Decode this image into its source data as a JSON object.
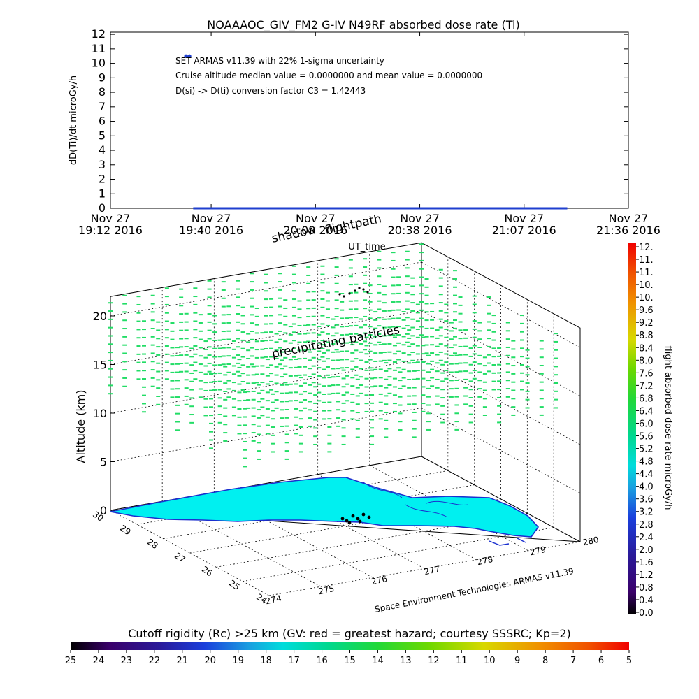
{
  "chart_data": [
    {
      "type": "scatter",
      "title": "NOAAAOC_GIV_FM2 G-IV    N49RF  absorbed dose rate (Ti)",
      "ylabel": "dD(Ti)/dt microGy/h",
      "xlabel": "UT_time",
      "ylim": [
        0,
        12
      ],
      "y_ticks": [
        "0",
        "1",
        "2",
        "3",
        "4",
        "5",
        "6",
        "7",
        "8",
        "9",
        "10",
        "11",
        "12"
      ],
      "x_ticks": [
        {
          "day": "Nov 27",
          "time": "19:12 2016"
        },
        {
          "day": "Nov 27",
          "time": "19:40 2016"
        },
        {
          "day": "Nov 27",
          "time": "20:09 2016"
        },
        {
          "day": "Nov 27",
          "time": "20:38 2016"
        },
        {
          "day": "Nov 27",
          "time": "21:07 2016"
        },
        {
          "day": "Nov 27",
          "time": "21:36 2016"
        }
      ],
      "series": [
        {
          "start": "19:35",
          "end": "21:19",
          "dose_rate": 0,
          "color": "#1f3fcf"
        }
      ],
      "legend_marker": {
        "time": "19:33",
        "value": 10.5
      },
      "annotations": [
        "SET ARMAS v11.39 with 22% 1-sigma uncertainty",
        "Cruise altitude median value = 0.0000000 and mean value = 0.0000000",
        "D(si) -> D(ti) conversion factor C3 = 1.42443"
      ]
    },
    {
      "type": "3d-scatter",
      "zlabel": "Altitude (km)",
      "z_ticks": [
        "0",
        "5",
        "10",
        "15",
        "20"
      ],
      "zlim": [
        0,
        22
      ],
      "lat_ticks": [
        "30",
        "29",
        "28",
        "27",
        "26",
        "25",
        "24"
      ],
      "lon_ticks": [
        "274",
        "275",
        "276",
        "277",
        "278",
        "279",
        "280"
      ],
      "labels": {
        "flightpath": "flightpath",
        "shadow": "shadow",
        "particles": "precipitating particles",
        "credit": "Space Environment Technologies ARMAS v11.39"
      },
      "flight_altitude_km": 0,
      "particle_color": "#22dd66",
      "land_color": "#00f0f0",
      "coast_color": "#1a2fcf"
    },
    {
      "type": "colorbar",
      "orientation": "vertical",
      "label": "flight absorbed dose rate microGy/h",
      "ticks": [
        "0.0",
        "0.4",
        "0.8",
        "1.2",
        "1.6",
        "2.0",
        "2.4",
        "2.8",
        "3.2",
        "3.6",
        "4.0",
        "4.4",
        "4.8",
        "5.2",
        "5.6",
        "6.0",
        "6.4",
        "6.8",
        "7.2",
        "7.6",
        "8.0",
        "8.4",
        "8.8",
        "9.2",
        "9.6",
        "10.",
        "10.",
        "11.",
        "11.",
        "12."
      ]
    },
    {
      "type": "colorbar",
      "orientation": "horizontal",
      "title": "Cutoff rigidity (Rc) >25 km (GV: red = greatest hazard; courtesy SSSRC; Kp=2)",
      "ticks": [
        "25",
        "24",
        "23",
        "22",
        "21",
        "20",
        "19",
        "18",
        "17",
        "16",
        "15",
        "14",
        "13",
        "12",
        "11",
        "10",
        "9",
        "8",
        "7",
        "6",
        "5"
      ]
    }
  ]
}
